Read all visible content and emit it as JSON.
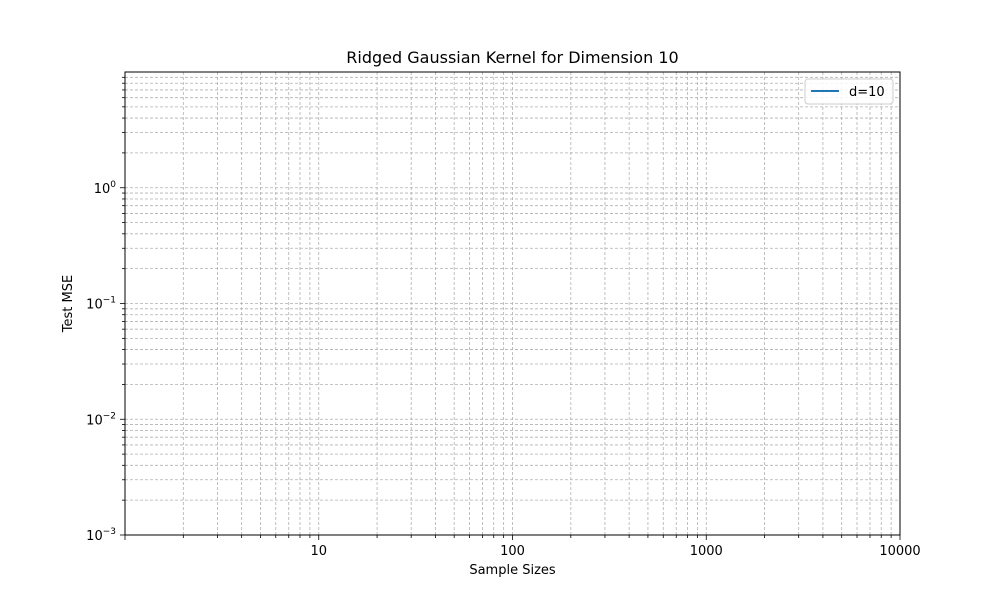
{
  "chart_data": {
    "type": "line",
    "title": "Ridged Gaussian Kernel for Dimension 10",
    "xlabel": "Sample Sizes",
    "ylabel": "Test MSE",
    "xscale": "log",
    "yscale": "log",
    "xlim": [
      1.0,
      10000
    ],
    "ylim": [
      0.001,
      10
    ],
    "x_ticks": [
      {
        "value": 10,
        "label": "10"
      },
      {
        "value": 100,
        "label": "100"
      },
      {
        "value": 1000,
        "label": "1000"
      },
      {
        "value": 10000,
        "label": "10000"
      }
    ],
    "y_ticks": [
      {
        "value": 0.001,
        "base": "10",
        "exp": "−3"
      },
      {
        "value": 0.01,
        "base": "10",
        "exp": "−2"
      },
      {
        "value": 0.1,
        "base": "10",
        "exp": "−1"
      },
      {
        "value": 1,
        "base": "10",
        "exp": "0"
      }
    ],
    "grid": true,
    "grid_minor": true,
    "legend_position": "upper right",
    "series": [
      {
        "name": "d=10",
        "color": "#1f77b4",
        "x": [],
        "y": []
      }
    ]
  }
}
